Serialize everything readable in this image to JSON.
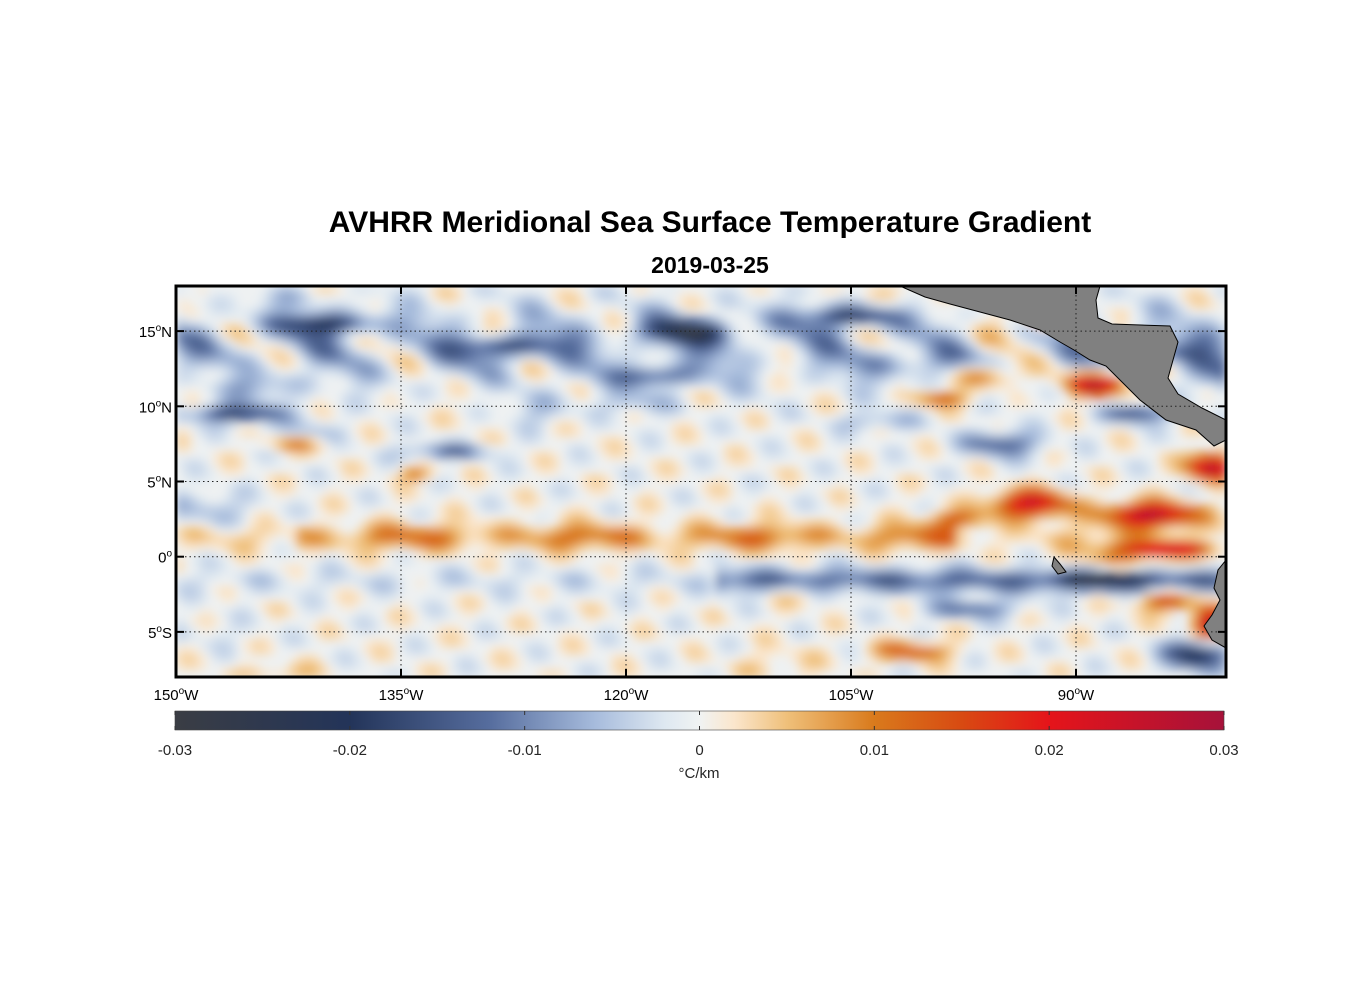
{
  "chart_data": {
    "type": "heatmap",
    "title": "AVHRR Meridional Sea Surface Temperature Gradient",
    "subtitle": "2019-03-25",
    "variable": "meridional SST gradient",
    "units": "°C/km",
    "lon_range": [
      -150,
      -80
    ],
    "lat_range": [
      -8,
      18
    ],
    "x_ticks": [
      {
        "value": -150,
        "deg": "150",
        "hemi": "W"
      },
      {
        "value": -135,
        "deg": "135",
        "hemi": "W"
      },
      {
        "value": -120,
        "deg": "120",
        "hemi": "W"
      },
      {
        "value": -105,
        "deg": "105",
        "hemi": "W"
      },
      {
        "value": -90,
        "deg": "90",
        "hemi": "W"
      }
    ],
    "y_ticks": [
      {
        "value": 15,
        "deg": "15",
        "hemi": "N"
      },
      {
        "value": 10,
        "deg": "10",
        "hemi": "N"
      },
      {
        "value": 5,
        "deg": "5",
        "hemi": "N"
      },
      {
        "value": 0,
        "deg": "0",
        "hemi": ""
      },
      {
        "value": -5,
        "deg": "5",
        "hemi": "S"
      }
    ],
    "grid": "dotted",
    "colorbar": {
      "range": [
        -0.03,
        0.03
      ],
      "ticks": [
        -0.03,
        -0.02,
        -0.01,
        0,
        0.01,
        0.02,
        0.03
      ],
      "tick_labels": [
        "-0.03",
        "-0.02",
        "-0.01",
        "0",
        "0.01",
        "0.02",
        "0.03"
      ],
      "label": "°C/km",
      "position": "bottom"
    },
    "features": [
      {
        "name": "equatorial warm band",
        "lon": [
          -140,
          -100
        ],
        "lat": [
          0.5,
          2.5
        ],
        "value": 0.01
      },
      {
        "name": "negative band south of equator",
        "lon": [
          -113,
          -90
        ],
        "lat": [
          -2.5,
          -1
        ],
        "value": -0.012
      },
      {
        "name": "Gulf of Papagayo positive front",
        "lon": [
          -91,
          -85
        ],
        "lat": [
          10.5,
          12.5
        ],
        "value": 0.025
      },
      {
        "name": "Panama Bight positive fronts",
        "lon": [
          -92,
          -80
        ],
        "lat": [
          1,
          6.5
        ],
        "value": 0.025
      },
      {
        "name": "negative streaks 12-17N",
        "lon": [
          -150,
          -100
        ],
        "lat": [
          12,
          17
        ],
        "value": -0.015
      },
      {
        "name": "negative band 8-10N",
        "lon": [
          -150,
          -140
        ],
        "lat": [
          8,
          10
        ],
        "value": -0.015
      }
    ]
  },
  "colormap": [
    {
      "v": -0.03,
      "color": "#3a3d44"
    },
    {
      "v": -0.02,
      "color": "#233459"
    },
    {
      "v": -0.012,
      "color": "#566d9e"
    },
    {
      "v": -0.006,
      "color": "#a6bbdc"
    },
    {
      "v": -0.002,
      "color": "#dee8f1"
    },
    {
      "v": 0,
      "color": "#f0f3f3"
    },
    {
      "v": 0.002,
      "color": "#fbe6cc"
    },
    {
      "v": 0.005,
      "color": "#efc07a"
    },
    {
      "v": 0.01,
      "color": "#d97a1c"
    },
    {
      "v": 0.015,
      "color": "#d84a12"
    },
    {
      "v": 0.02,
      "color": "#e5141a"
    },
    {
      "v": 0.03,
      "color": "#a6123a"
    }
  ],
  "land_color": "#808080"
}
